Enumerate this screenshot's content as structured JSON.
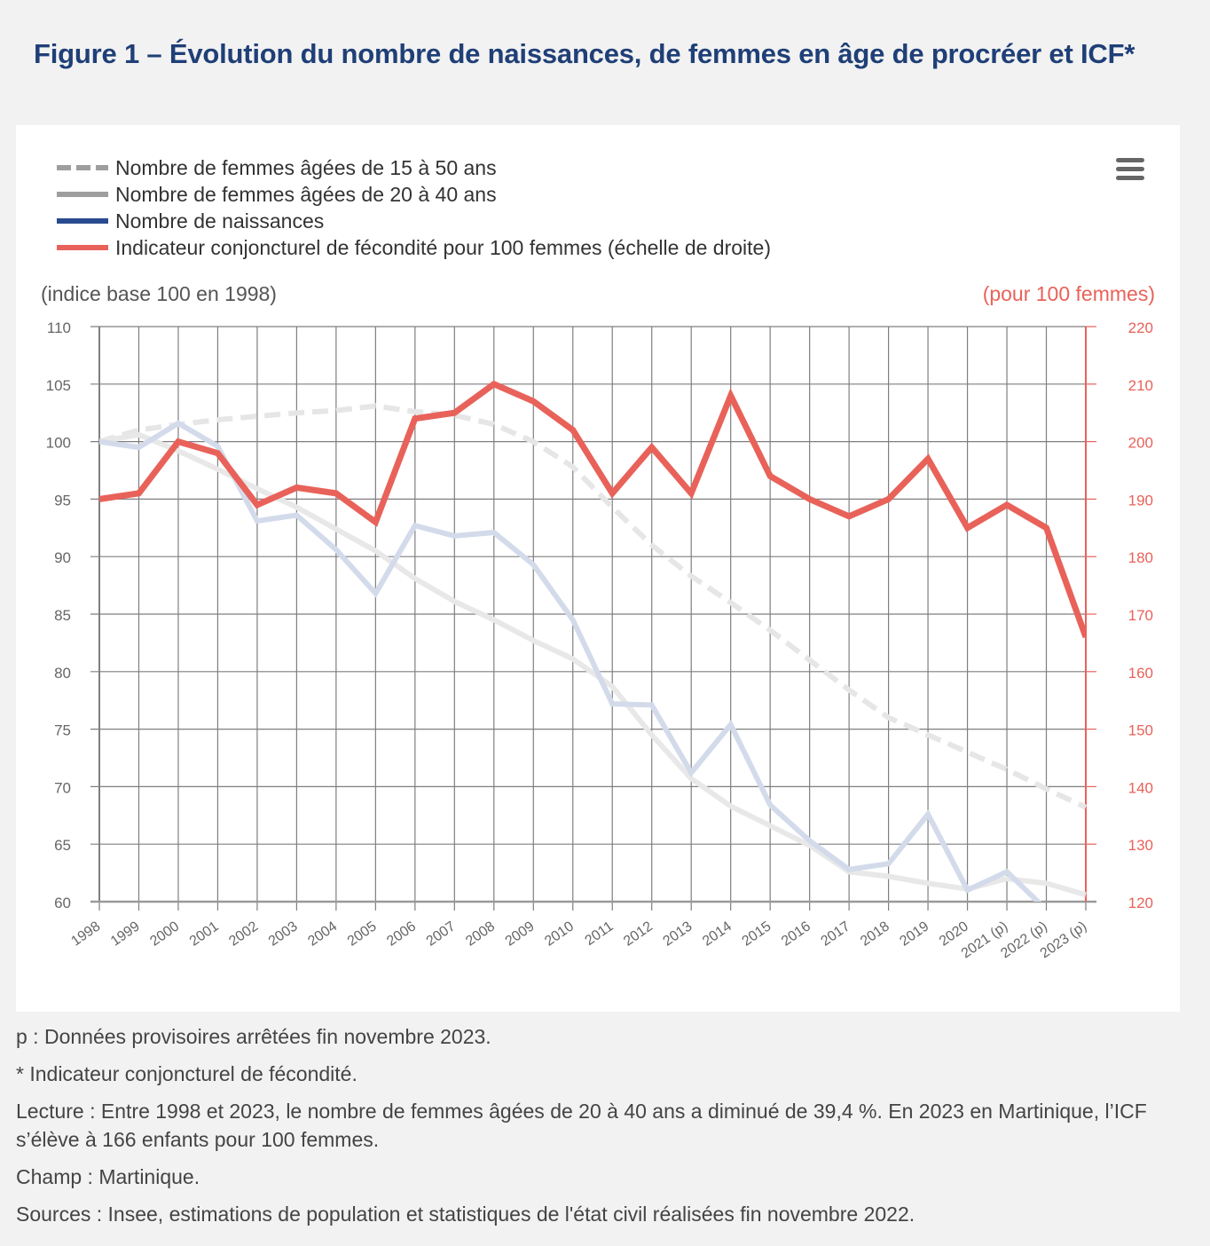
{
  "title": "Figure 1 – Évolution du nombre de naissances, de femmes en âge de procréer et ICF*",
  "menu_icon": "hamburger-menu-icon",
  "legend": [
    {
      "label": "Nombre de femmes âgées de 15 à 50 ans",
      "color": "#9e9e9e",
      "style": "dashed"
    },
    {
      "label": "Nombre de femmes âgées de 20 à 40 ans",
      "color": "#9e9e9e",
      "style": "solid"
    },
    {
      "label": "Nombre de naissances",
      "color": "#2a4a8f",
      "style": "solid"
    },
    {
      "label": "Indicateur conjoncturel de fécondité pour 100 femmes (échelle de droite)",
      "color": "#e8625a",
      "style": "solid"
    }
  ],
  "chart_data": {
    "type": "line",
    "title": "Figure 1 – Évolution du nombre de naissances, de femmes en âge de procréer et ICF*",
    "ylabel": "(indice base 100 en 1998)",
    "y2label": "(pour 100 femmes)",
    "xlabel": "",
    "ylim": [
      60,
      110
    ],
    "y2lim": [
      120,
      220
    ],
    "yticks": [
      60,
      65,
      70,
      75,
      80,
      85,
      90,
      95,
      100,
      105,
      110
    ],
    "y2ticks": [
      120,
      130,
      140,
      150,
      160,
      170,
      180,
      190,
      200,
      210,
      220
    ],
    "grid": true,
    "legend_position": "top-left",
    "categories": [
      "1998",
      "1999",
      "2000",
      "2001",
      "2002",
      "2003",
      "2004",
      "2005",
      "2006",
      "2007",
      "2008",
      "2009",
      "2010",
      "2011",
      "2012",
      "2013",
      "2014",
      "2015",
      "2016",
      "2017",
      "2018",
      "2019",
      "2020",
      "2021 (p)",
      "2022 (p)",
      "2023 (p)"
    ],
    "series": [
      {
        "name": "Nombre de femmes âgées de 15 à 50 ans",
        "axis": "left",
        "color": "#e6e6e6",
        "dashed": true,
        "values": [
          100,
          101.0,
          101.5,
          101.9,
          102.2,
          102.5,
          102.7,
          103.1,
          102.6,
          102.3,
          101.5,
          100.0,
          97.8,
          94.3,
          91.0,
          88.3,
          86.0,
          83.6,
          81.0,
          78.4,
          76.0,
          74.5,
          73.0,
          71.5,
          69.8,
          68.2
        ]
      },
      {
        "name": "Nombre de femmes âgées de 20 à 40 ans",
        "axis": "left",
        "color": "#e8e8e8",
        "dashed": false,
        "values": [
          100,
          100.6,
          99.2,
          97.6,
          95.9,
          94.3,
          92.4,
          90.5,
          88.1,
          86.1,
          84.5,
          82.7,
          81.1,
          78.7,
          74.5,
          70.7,
          68.3,
          66.6,
          64.9,
          62.6,
          62.2,
          61.6,
          61.1,
          62.0,
          61.6,
          60.6
        ]
      },
      {
        "name": "Nombre de naissances",
        "axis": "left",
        "color": "#d3dbeb",
        "dashed": false,
        "values": [
          100,
          99.5,
          101.6,
          99.6,
          93.1,
          93.6,
          90.6,
          86.8,
          92.7,
          91.8,
          92.1,
          89.3,
          84.5,
          77.2,
          77.1,
          71.2,
          75.4,
          68.4,
          65.3,
          62.8,
          63.3,
          67.6,
          61.0,
          62.6,
          59.3,
          58.0
        ]
      },
      {
        "name": "Indicateur conjoncturel de fécondité pour 100 femmes (échelle de droite)",
        "axis": "right",
        "color": "#e8625a",
        "dashed": false,
        "values": [
          190,
          191,
          200,
          198,
          189,
          192,
          191,
          186,
          204,
          205,
          210,
          207,
          202,
          191,
          199,
          191,
          208,
          194,
          190,
          187,
          190,
          197,
          185,
          189,
          185,
          166
        ]
      }
    ]
  },
  "notes": [
    "p : Données provisoires arrêtées fin novembre 2023.",
    "* Indicateur conjoncturel de fécondité.",
    "Lecture : Entre 1998 et 2023, le nombre de femmes âgées de 20 à 40 ans a diminué de 39,4 %. En 2023 en Martinique, l’ICF s’élève à 166 enfants pour 100 femmes.",
    "Champ : Martinique.",
    "Sources : Insee, estimations de population et statistiques de l'état civil réalisées fin novembre 2022."
  ]
}
